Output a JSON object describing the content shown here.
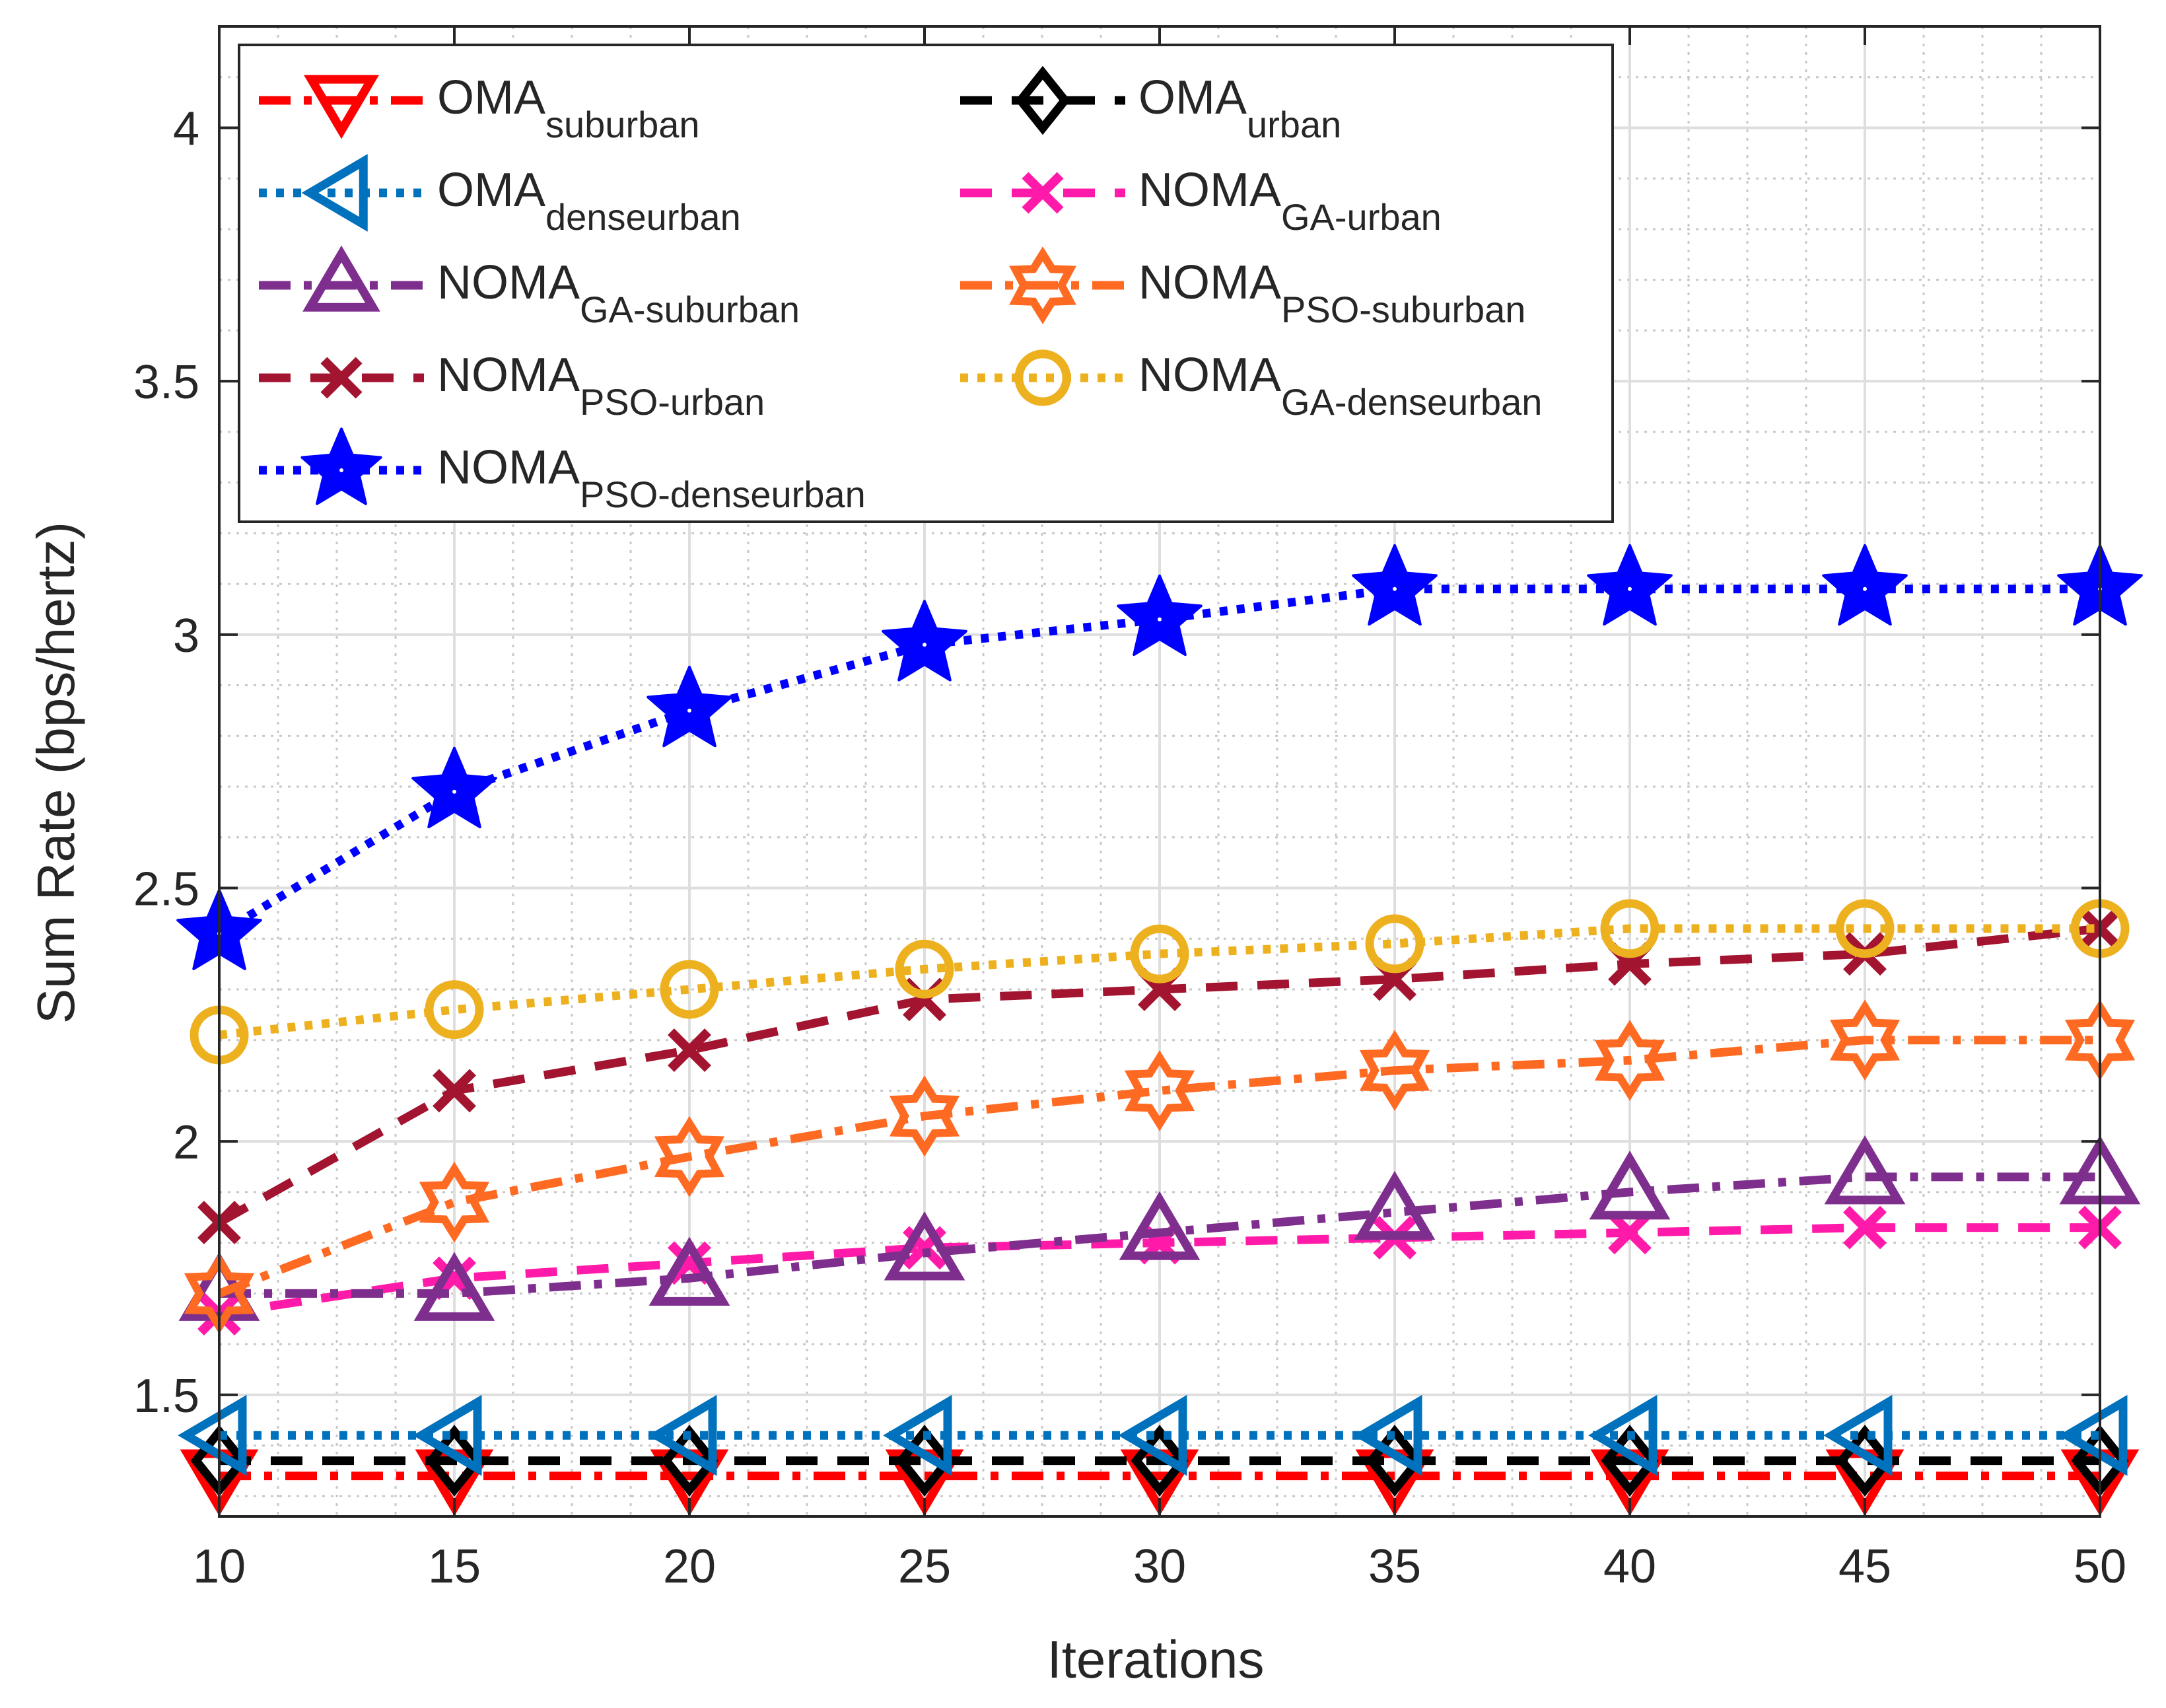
{
  "chart_data": {
    "type": "line",
    "title": "",
    "xlabel": "Iterations",
    "ylabel": "Sum Rate (bps/hertz)",
    "xlim": [
      10,
      50
    ],
    "ylim": [
      1.26,
      4.2
    ],
    "grid": true,
    "minor_grid": true,
    "legend_position": "top-left",
    "x": [
      10,
      15,
      20,
      25,
      30,
      35,
      40,
      45,
      50
    ],
    "x_ticks": [
      "10",
      "15",
      "20",
      "25",
      "30",
      "35",
      "40",
      "45",
      "50"
    ],
    "y_ticks": [
      {
        "value": 1.5,
        "label": "1.5"
      },
      {
        "value": 2,
        "label": "2"
      },
      {
        "value": 2.5,
        "label": "2.5"
      },
      {
        "value": 3,
        "label": "3"
      },
      {
        "value": 3.5,
        "label": "3.5"
      },
      {
        "value": 4,
        "label": "4"
      }
    ],
    "series": [
      {
        "id": "oma-suburban",
        "name": "OMA",
        "sub": "suburban",
        "color": "#ff0000",
        "dash": "dashdot",
        "marker": "triangle-down",
        "values": [
          1.34,
          1.34,
          1.34,
          1.34,
          1.34,
          1.34,
          1.34,
          1.34,
          1.34
        ]
      },
      {
        "id": "oma-urban",
        "name": "OMA",
        "sub": "urban",
        "color": "#000000",
        "dash": "dashed",
        "marker": "diamond",
        "values": [
          1.37,
          1.37,
          1.37,
          1.37,
          1.37,
          1.37,
          1.37,
          1.37,
          1.37
        ]
      },
      {
        "id": "oma-denseurban",
        "name": "OMA",
        "sub": "denseurban",
        "color": "#0072bd",
        "dash": "dotted",
        "marker": "triangle-left",
        "values": [
          1.42,
          1.42,
          1.42,
          1.42,
          1.42,
          1.42,
          1.42,
          1.42,
          1.42
        ]
      },
      {
        "id": "noma-ga-urban",
        "name": "NOMA",
        "sub": "GA-urban",
        "color": "#ff1aaa",
        "dash": "dashed",
        "marker": "x",
        "values": [
          1.66,
          1.73,
          1.76,
          1.79,
          1.8,
          1.81,
          1.82,
          1.83,
          1.83
        ]
      },
      {
        "id": "noma-ga-suburban",
        "name": "NOMA",
        "sub": "GA-suburban",
        "color": "#7e2f8e",
        "dash": "dashdot",
        "marker": "triangle-up",
        "values": [
          1.7,
          1.7,
          1.73,
          1.78,
          1.82,
          1.86,
          1.9,
          1.93,
          1.93
        ]
      },
      {
        "id": "noma-pso-suburban",
        "name": "NOMA",
        "sub": "PSO-suburban",
        "color": "#ff6a22",
        "dash": "dashdot",
        "marker": "hexagram",
        "values": [
          1.7,
          1.88,
          1.97,
          2.05,
          2.1,
          2.14,
          2.16,
          2.2,
          2.2
        ]
      },
      {
        "id": "noma-pso-urban",
        "name": "NOMA",
        "sub": "PSO-urban",
        "color": "#a2142f",
        "dash": "dashed",
        "marker": "x",
        "values": [
          1.84,
          2.1,
          2.18,
          2.28,
          2.3,
          2.32,
          2.35,
          2.37,
          2.42
        ]
      },
      {
        "id": "noma-ga-denseurban",
        "name": "NOMA",
        "sub": "GA-denseurban",
        "color": "#edb120",
        "dash": "dotted",
        "marker": "circle",
        "values": [
          2.21,
          2.26,
          2.3,
          2.34,
          2.37,
          2.39,
          2.42,
          2.42,
          2.42
        ]
      },
      {
        "id": "noma-pso-denseurban",
        "name": "NOMA",
        "sub": "PSO-denseurban",
        "color": "#0000ff",
        "dash": "dotted",
        "marker": "pentagram",
        "values": [
          2.41,
          2.69,
          2.85,
          2.98,
          3.03,
          3.09,
          3.09,
          3.09,
          3.09
        ]
      }
    ],
    "legend_order": [
      "oma-suburban",
      "oma-urban",
      "oma-denseurban",
      "noma-ga-urban",
      "noma-ga-suburban",
      "noma-pso-suburban",
      "noma-pso-urban",
      "noma-ga-denseurban",
      "noma-pso-denseurban"
    ]
  }
}
